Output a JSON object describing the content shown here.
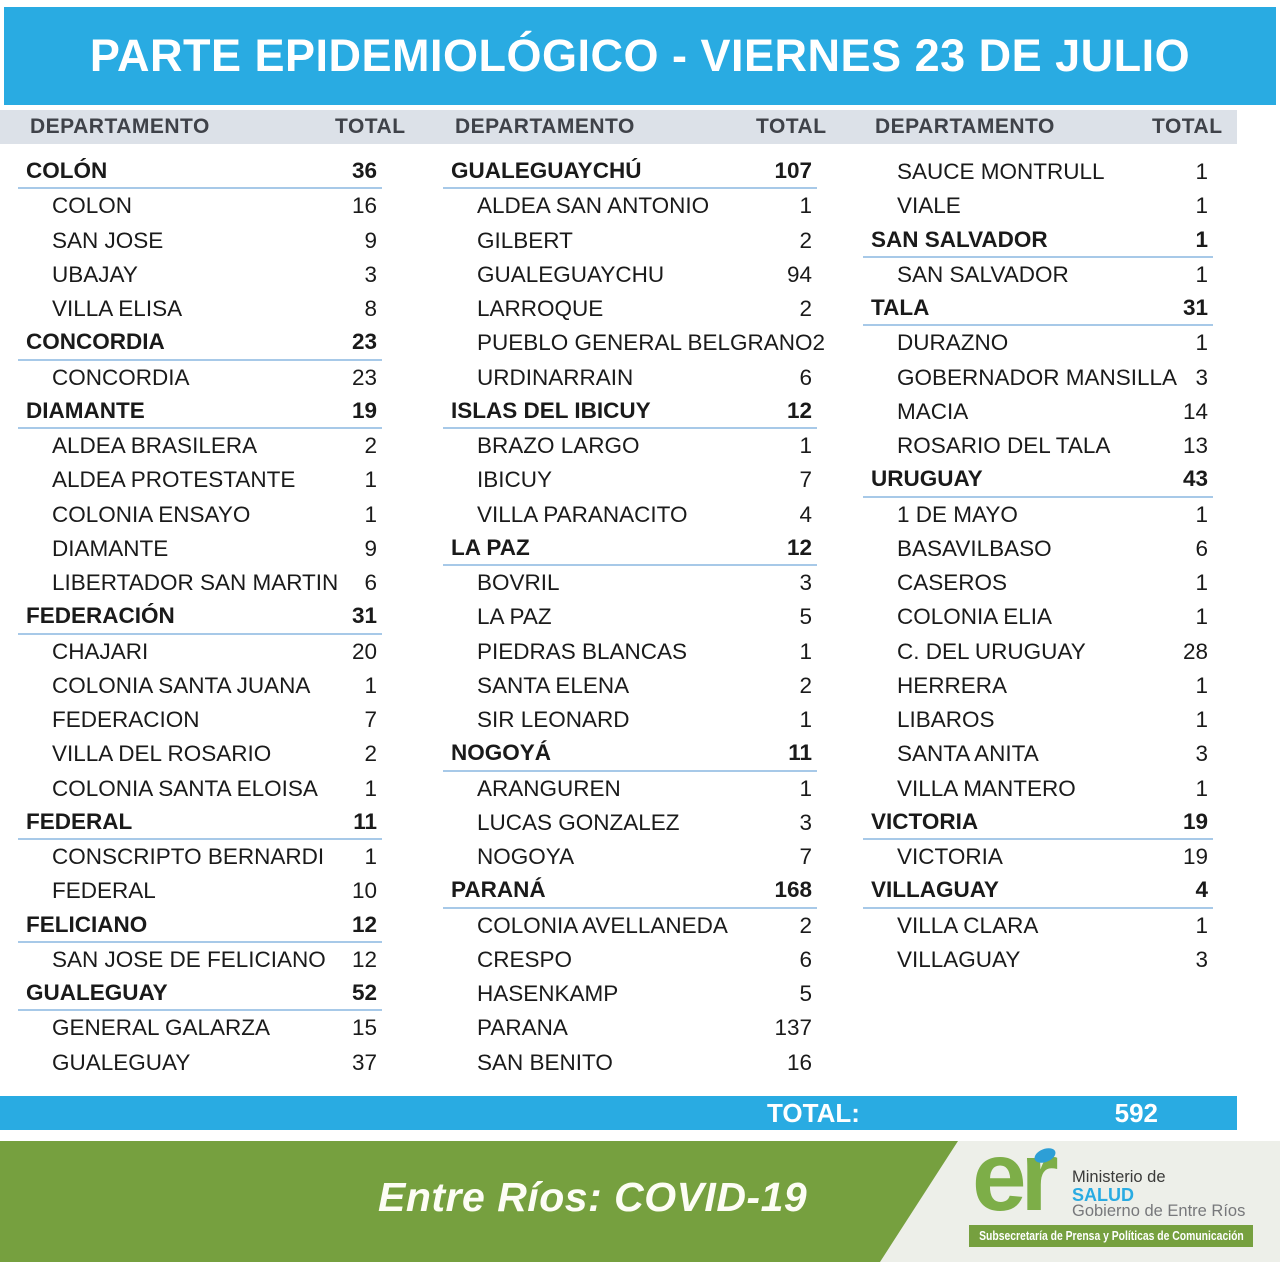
{
  "title": "PARTE EPIDEMIOLÓGICO - VIERNES 23 DE JULIO",
  "header": {
    "department": "DEPARTAMENTO",
    "total": "TOTAL"
  },
  "table": {
    "columns": [
      {
        "rows": [
          {
            "type": "dept",
            "label": "COLÓN",
            "value": "36"
          },
          {
            "type": "loc",
            "label": "COLON",
            "value": "16"
          },
          {
            "type": "loc",
            "label": "SAN JOSE",
            "value": "9"
          },
          {
            "type": "loc",
            "label": "UBAJAY",
            "value": "3"
          },
          {
            "type": "loc",
            "label": "VILLA ELISA",
            "value": "8"
          },
          {
            "type": "dept",
            "label": "CONCORDIA",
            "value": "23"
          },
          {
            "type": "loc",
            "label": "CONCORDIA",
            "value": "23"
          },
          {
            "type": "dept",
            "label": "DIAMANTE",
            "value": "19"
          },
          {
            "type": "loc",
            "label": "ALDEA BRASILERA",
            "value": "2"
          },
          {
            "type": "loc",
            "label": "ALDEA PROTESTANTE",
            "value": "1"
          },
          {
            "type": "loc",
            "label": "COLONIA ENSAYO",
            "value": "1"
          },
          {
            "type": "loc",
            "label": "DIAMANTE",
            "value": "9"
          },
          {
            "type": "loc",
            "label": "LIBERTADOR SAN MARTIN",
            "value": "6"
          },
          {
            "type": "dept",
            "label": "FEDERACIÓN",
            "value": "31"
          },
          {
            "type": "loc",
            "label": "CHAJARI",
            "value": "20"
          },
          {
            "type": "loc",
            "label": "COLONIA SANTA JUANA",
            "value": "1"
          },
          {
            "type": "loc",
            "label": "FEDERACION",
            "value": "7"
          },
          {
            "type": "loc",
            "label": "VILLA DEL ROSARIO",
            "value": "2"
          },
          {
            "type": "loc",
            "label": "COLONIA SANTA ELOISA",
            "value": "1"
          },
          {
            "type": "dept",
            "label": "FEDERAL",
            "value": "11"
          },
          {
            "type": "loc",
            "label": "CONSCRIPTO BERNARDI",
            "value": "1"
          },
          {
            "type": "loc",
            "label": "FEDERAL",
            "value": "10"
          },
          {
            "type": "dept",
            "label": "FELICIANO",
            "value": "12"
          },
          {
            "type": "loc",
            "label": "SAN JOSE DE FELICIANO",
            "value": "12"
          },
          {
            "type": "dept",
            "label": "GUALEGUAY",
            "value": "52"
          },
          {
            "type": "loc",
            "label": "GENERAL GALARZA",
            "value": "15"
          },
          {
            "type": "loc",
            "label": "GUALEGUAY",
            "value": "37"
          }
        ]
      },
      {
        "rows": [
          {
            "type": "dept",
            "label": "GUALEGUAYCHÚ",
            "value": "107"
          },
          {
            "type": "loc",
            "label": "ALDEA SAN ANTONIO",
            "value": "1"
          },
          {
            "type": "loc",
            "label": "GILBERT",
            "value": "2"
          },
          {
            "type": "loc",
            "label": "GUALEGUAYCHU",
            "value": "94"
          },
          {
            "type": "loc",
            "label": "LARROQUE",
            "value": "2"
          },
          {
            "type": "loc",
            "label": "PUEBLO GENERAL BELGRANO",
            "value": "2"
          },
          {
            "type": "loc",
            "label": "URDINARRAIN",
            "value": "6"
          },
          {
            "type": "dept",
            "label": "ISLAS DEL IBICUY",
            "value": "12"
          },
          {
            "type": "loc",
            "label": "BRAZO LARGO",
            "value": "1"
          },
          {
            "type": "loc",
            "label": "IBICUY",
            "value": "7"
          },
          {
            "type": "loc",
            "label": "VILLA PARANACITO",
            "value": "4"
          },
          {
            "type": "dept",
            "label": "LA PAZ",
            "value": "12"
          },
          {
            "type": "loc",
            "label": "BOVRIL",
            "value": "3"
          },
          {
            "type": "loc",
            "label": "LA PAZ",
            "value": "5"
          },
          {
            "type": "loc",
            "label": "PIEDRAS BLANCAS",
            "value": "1"
          },
          {
            "type": "loc",
            "label": "SANTA ELENA",
            "value": "2"
          },
          {
            "type": "loc",
            "label": "SIR LEONARD",
            "value": "1"
          },
          {
            "type": "dept",
            "label": "NOGOYÁ",
            "value": "11"
          },
          {
            "type": "loc",
            "label": "ARANGUREN",
            "value": "1"
          },
          {
            "type": "loc",
            "label": "LUCAS GONZALEZ",
            "value": "3"
          },
          {
            "type": "loc",
            "label": "NOGOYA",
            "value": "7"
          },
          {
            "type": "dept",
            "label": "PARANÁ",
            "value": "168"
          },
          {
            "type": "loc",
            "label": "COLONIA AVELLANEDA",
            "value": "2"
          },
          {
            "type": "loc",
            "label": "CRESPO",
            "value": "6"
          },
          {
            "type": "loc",
            "label": "HASENKAMP",
            "value": "5"
          },
          {
            "type": "loc",
            "label": "PARANA",
            "value": "137"
          },
          {
            "type": "loc",
            "label": "SAN BENITO",
            "value": "16"
          }
        ]
      },
      {
        "rows": [
          {
            "type": "loc",
            "label": "SAUCE MONTRULL",
            "value": "1"
          },
          {
            "type": "loc",
            "label": "VIALE",
            "value": "1"
          },
          {
            "type": "dept",
            "label": "SAN SALVADOR",
            "value": "1"
          },
          {
            "type": "loc",
            "label": "SAN SALVADOR",
            "value": "1"
          },
          {
            "type": "dept",
            "label": "TALA",
            "value": "31"
          },
          {
            "type": "loc",
            "label": "DURAZNO",
            "value": "1"
          },
          {
            "type": "loc",
            "label": "GOBERNADOR MANSILLA",
            "value": "3"
          },
          {
            "type": "loc",
            "label": "MACIA",
            "value": "14"
          },
          {
            "type": "loc",
            "label": "ROSARIO DEL TALA",
            "value": "13"
          },
          {
            "type": "dept",
            "label": "URUGUAY",
            "value": "43"
          },
          {
            "type": "loc",
            "label": "1 DE MAYO",
            "value": "1"
          },
          {
            "type": "loc",
            "label": "BASAVILBASO",
            "value": "6"
          },
          {
            "type": "loc",
            "label": "CASEROS",
            "value": "1"
          },
          {
            "type": "loc",
            "label": "COLONIA ELIA",
            "value": "1"
          },
          {
            "type": "loc",
            "label": "C. DEL URUGUAY",
            "value": "28"
          },
          {
            "type": "loc",
            "label": "HERRERA",
            "value": "1"
          },
          {
            "type": "loc",
            "label": "LIBAROS",
            "value": "1"
          },
          {
            "type": "loc",
            "label": "SANTA ANITA",
            "value": "3"
          },
          {
            "type": "loc",
            "label": "VILLA MANTERO",
            "value": "1"
          },
          {
            "type": "dept",
            "label": "VICTORIA",
            "value": "19"
          },
          {
            "type": "loc",
            "label": "VICTORIA",
            "value": "19"
          },
          {
            "type": "dept",
            "label": "VILLAGUAY",
            "value": "4"
          },
          {
            "type": "loc",
            "label": "VILLA CLARA",
            "value": "1"
          },
          {
            "type": "loc",
            "label": "VILLAGUAY",
            "value": "3"
          }
        ]
      }
    ]
  },
  "grand_total": {
    "label": "TOTAL:",
    "value": "592"
  },
  "footer": {
    "banner": "Entre Ríos: COVID-19",
    "logo_letters": "er",
    "ministry_line1": "Ministerio de",
    "ministry_line2": "SALUD",
    "ministry_line3": "Gobierno de Entre Ríos",
    "subsecretary": "Subsecretaría de Prensa y Políticas de Comunicación"
  },
  "colors": {
    "brand_blue": "#29ABE2",
    "header_band": "#DCE1E8",
    "dept_underline": "#A7C9E8",
    "brand_green": "#76A03F",
    "logo_green": "#7DAE48",
    "footer_bg": "#EDEFE9"
  }
}
